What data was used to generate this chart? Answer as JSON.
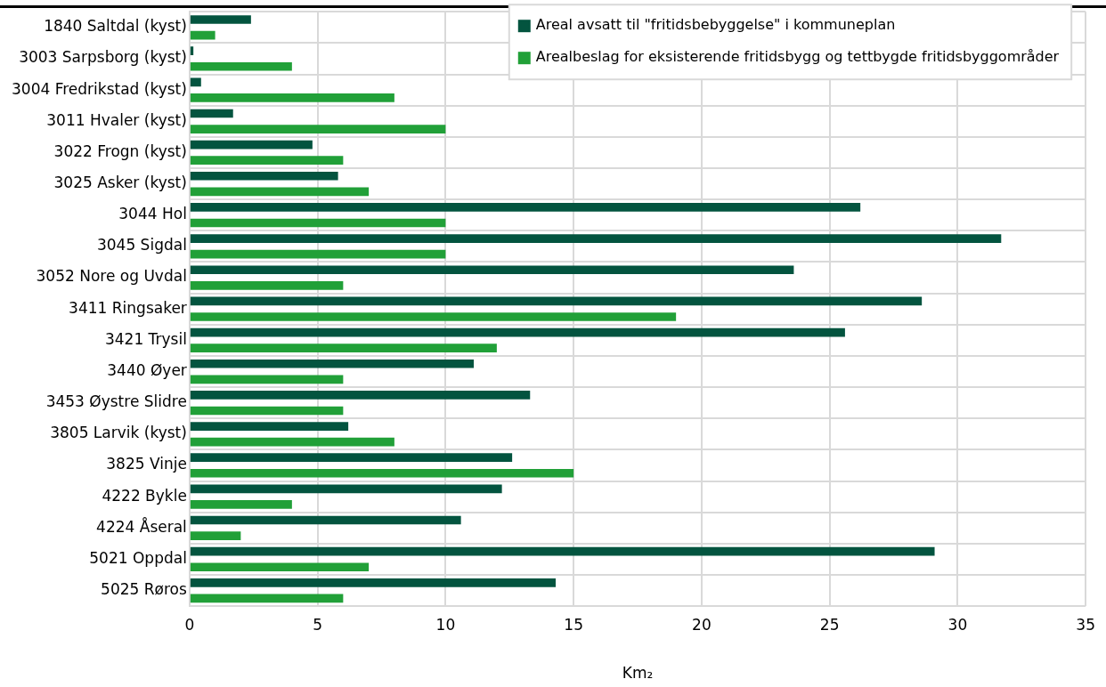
{
  "chart_data": {
    "type": "bar",
    "orientation": "horizontal",
    "xlabel": "Km₂",
    "categories": [
      "1840 Saltdal (kyst)",
      "3003 Sarpsborg (kyst)",
      "3004 Fredrikstad (kyst)",
      "3011 Hvaler (kyst)",
      "3022 Frogn (kyst)",
      "3025 Asker (kyst)",
      "3044 Hol",
      "3045 Sigdal",
      "3052 Nore og Uvdal",
      "3411 Ringsaker",
      "3421 Trysil",
      "3440 Øyer",
      "3453 Øystre Slidre",
      "3805 Larvik (kyst)",
      "3825 Vinje",
      "4222 Bykle",
      "4224 Åseral",
      "5021 Oppdal",
      "5025 Røros"
    ],
    "series": [
      {
        "name": "Areal avsatt til \"fritidsbebyggelse\" i kommuneplan",
        "color": "#03543f",
        "values": [
          2.4,
          0.15,
          0.45,
          1.7,
          4.8,
          5.8,
          26.2,
          31.7,
          23.6,
          28.6,
          25.6,
          11.1,
          13.3,
          6.2,
          12.6,
          12.2,
          10.6,
          29.1,
          14.3
        ]
      },
      {
        "name": "Arealbeslag for eksisterende fritidsbygg og tettbygde fritidsbyggområder",
        "color": "#21a038",
        "values": [
          1,
          4,
          8,
          10,
          6,
          7,
          10,
          10,
          6,
          19,
          12,
          6,
          6,
          8,
          15,
          4,
          2,
          7,
          6
        ]
      }
    ],
    "xlim": [
      0,
      35
    ],
    "xticks": [
      0,
      5,
      10,
      15,
      20,
      25,
      30,
      35
    ],
    "grid": true,
    "legend": "top right"
  }
}
